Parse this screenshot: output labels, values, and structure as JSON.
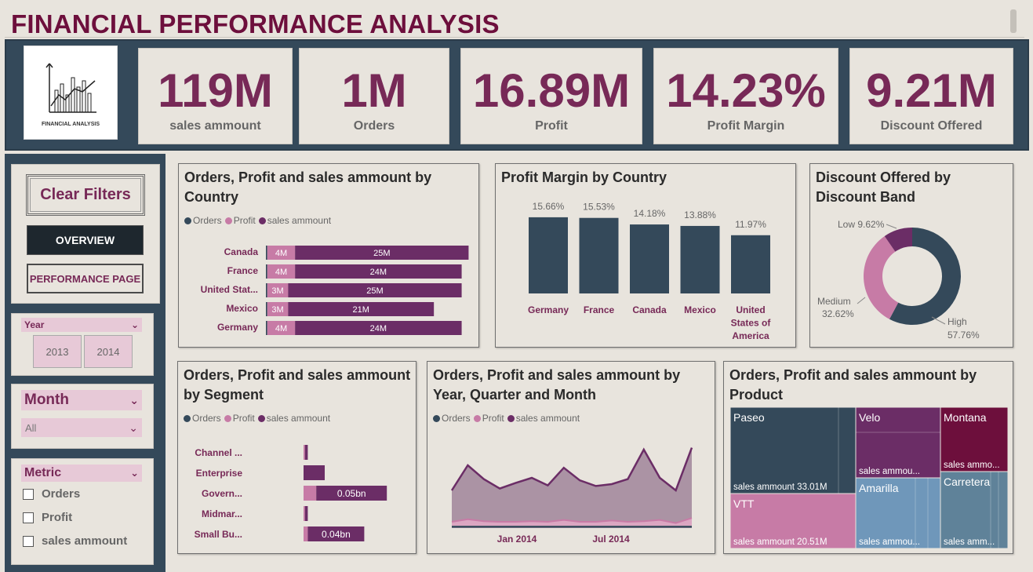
{
  "title": "FINANCIAL PERFORMANCE ANALYSIS",
  "logo": {
    "caption": "FINANCIAL ANALYSIS",
    "icon": "bar-line-chart-icon"
  },
  "kpis": [
    {
      "value": "119M",
      "label": "sales ammount"
    },
    {
      "value": "1M",
      "label": "Orders"
    },
    {
      "value": "16.89M",
      "label": "Profit"
    },
    {
      "value": "14.23%",
      "label": "Profit Margin"
    },
    {
      "value": "9.21M",
      "label": "Discount Offered"
    }
  ],
  "sidebar": {
    "clear_filters": "Clear Filters",
    "overview": "OVERVIEW",
    "performance": "PERFORMANCE PAGE",
    "year": {
      "label": "Year",
      "options": [
        "2013",
        "2014"
      ]
    },
    "month": {
      "label": "Month",
      "value": "All"
    },
    "metric": {
      "label": "Metric",
      "options": [
        "Orders",
        "Profit",
        "sales ammount"
      ]
    }
  },
  "colors": {
    "orders": "#34495a",
    "profit": "#c77ba6",
    "sales": "#6b2d66",
    "accent": "#772957"
  },
  "legend": [
    "Orders",
    "Profit",
    "sales ammount"
  ],
  "chart_data": [
    {
      "type": "bar",
      "orientation": "horizontal",
      "stacked": true,
      "title": "Orders, Profit and sales ammount by Country",
      "categories": [
        "Canada",
        "France",
        "United Stat...",
        "Mexico",
        "Germany"
      ],
      "series": [
        {
          "name": "Orders",
          "values": [
            0.2,
            0.2,
            0.2,
            0.2,
            0.2
          ]
        },
        {
          "name": "Profit",
          "values": [
            4,
            4,
            3,
            3,
            4
          ],
          "labels": [
            "4M",
            "4M",
            "3M",
            "3M",
            "4M"
          ]
        },
        {
          "name": "sales ammount",
          "values": [
            25,
            24,
            25,
            21,
            24
          ],
          "labels": [
            "25M",
            "24M",
            "25M",
            "21M",
            "24M"
          ]
        }
      ]
    },
    {
      "type": "bar",
      "title": "Profit Margin by Country",
      "categories": [
        "Germany",
        "France",
        "Canada",
        "Mexico",
        "United States of America"
      ],
      "values": [
        15.66,
        15.53,
        14.18,
        13.88,
        11.97
      ],
      "labels": [
        "15.66%",
        "15.53%",
        "14.18%",
        "13.88%",
        "11.97%"
      ]
    },
    {
      "type": "pie",
      "donut": true,
      "title": "Discount Offered by Discount Band",
      "slices": [
        {
          "name": "High",
          "value": 57.76,
          "label": "57.76%",
          "color": "#34495a"
        },
        {
          "name": "Medium",
          "value": 32.62,
          "label": "32.62%",
          "color": "#c77ba6"
        },
        {
          "name": "Low",
          "value": 9.62,
          "label": "9.62%",
          "color": "#6b2d66"
        }
      ]
    },
    {
      "type": "bar",
      "orientation": "horizontal",
      "stacked": true,
      "title": "Orders, Profit and sales ammount by Segment",
      "categories": [
        "Channel ...",
        "Enterprise",
        "Govern...",
        "Midmar...",
        "Small Bu..."
      ],
      "series": [
        {
          "name": "Orders",
          "values": [
            0,
            0,
            0,
            0,
            0
          ]
        },
        {
          "name": "Profit",
          "values": [
            0.001,
            0,
            0.009,
            0.001,
            0.003
          ]
        },
        {
          "name": "sales ammount",
          "values": [
            0.002,
            0.015,
            0.05,
            0.002,
            0.04
          ],
          "labels": [
            "",
            "",
            "0.05bn",
            "",
            "0.04bn"
          ]
        }
      ]
    },
    {
      "type": "area",
      "title": "Orders, Profit and sales ammount by Year, Quarter and Month",
      "x_ticks": [
        "Jan 2014",
        "Jul 2014"
      ],
      "series": [
        {
          "name": "Orders",
          "values": [
            0.2,
            0.2,
            0.2,
            0.2,
            0.2,
            0.2,
            0.2,
            0.2,
            0.2,
            0.2,
            0.2,
            0.2,
            0.2,
            0.2,
            0.2,
            0.2
          ]
        },
        {
          "name": "Profit",
          "values": [
            1.0,
            1.4,
            1.1,
            1.0,
            1.0,
            1.1,
            1.0,
            1.3,
            1.0,
            1.0,
            1.2,
            1.0,
            1.1,
            1.3,
            0.8,
            1.6
          ]
        },
        {
          "name": "sales ammount",
          "values": [
            6.0,
            10.0,
            7.8,
            6.3,
            7.2,
            8.0,
            6.8,
            9.6,
            7.6,
            6.7,
            7.0,
            7.8,
            12.5,
            8.0,
            6.0,
            12.8
          ]
        }
      ]
    },
    {
      "type": "treemap",
      "title": "Orders, Profit and sales ammount by Product",
      "items": [
        {
          "name": "Paseo",
          "label": "sales ammount 33.01M",
          "color": "#34495a"
        },
        {
          "name": "VTT",
          "label": "sales ammount 20.51M",
          "color": "#c77ba6"
        },
        {
          "name": "Velo",
          "label": "sales ammou...",
          "color": "#6b2d66"
        },
        {
          "name": "Amarilla",
          "label": "sales ammou...",
          "color": "#6f97ba"
        },
        {
          "name": "Montana",
          "label": "sales ammo...",
          "color": "#6d0f3c"
        },
        {
          "name": "Carretera",
          "label": "sales amm...",
          "color": "#5f8299"
        }
      ]
    }
  ]
}
